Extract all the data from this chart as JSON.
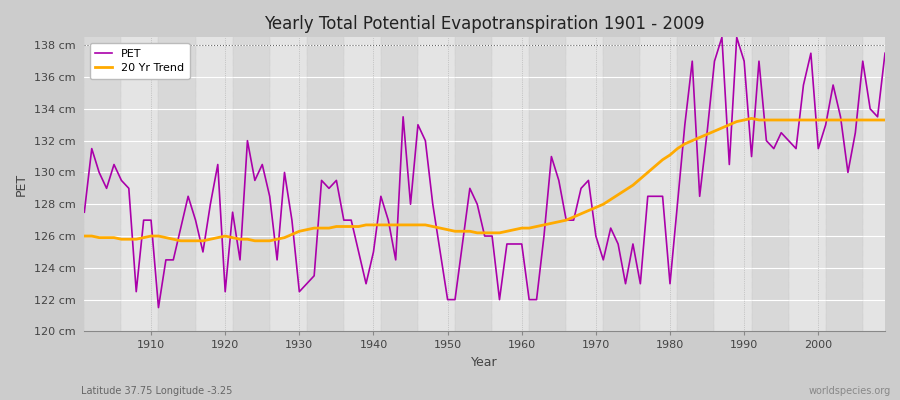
{
  "title": "Yearly Total Potential Evapotranspiration 1901 - 2009",
  "xlabel": "Year",
  "ylabel": "PET",
  "subtitle_left": "Latitude 37.75 Longitude -3.25",
  "subtitle_right": "worldspecies.org",
  "pet_color": "#aa00aa",
  "trend_color": "#ffaa00",
  "bg_color": "#d8d8d8",
  "plot_bg_light": "#e0e0e0",
  "plot_bg_dark": "#d0d0d0",
  "ylim": [
    120,
    138.5
  ],
  "ytick_labels": [
    "120 cm",
    "122 cm",
    "124 cm",
    "126 cm",
    "128 cm",
    "130 cm",
    "132 cm",
    "134 cm",
    "136 cm",
    "138 cm"
  ],
  "ytick_values": [
    120,
    122,
    124,
    126,
    128,
    130,
    132,
    134,
    136,
    138
  ],
  "xlim": [
    1901,
    2009
  ],
  "xtick_values": [
    1910,
    1920,
    1930,
    1940,
    1950,
    1960,
    1970,
    1980,
    1990,
    2000
  ],
  "years": [
    1901,
    1902,
    1903,
    1904,
    1905,
    1906,
    1907,
    1908,
    1909,
    1910,
    1911,
    1912,
    1913,
    1914,
    1915,
    1916,
    1917,
    1918,
    1919,
    1920,
    1921,
    1922,
    1923,
    1924,
    1925,
    1926,
    1927,
    1928,
    1929,
    1930,
    1931,
    1932,
    1933,
    1934,
    1935,
    1936,
    1937,
    1938,
    1939,
    1940,
    1941,
    1942,
    1943,
    1944,
    1945,
    1946,
    1947,
    1948,
    1949,
    1950,
    1951,
    1952,
    1953,
    1954,
    1955,
    1956,
    1957,
    1958,
    1959,
    1960,
    1961,
    1962,
    1963,
    1964,
    1965,
    1966,
    1967,
    1968,
    1969,
    1970,
    1971,
    1972,
    1973,
    1974,
    1975,
    1976,
    1977,
    1978,
    1979,
    1980,
    1981,
    1982,
    1983,
    1984,
    1985,
    1986,
    1987,
    1988,
    1989,
    1990,
    1991,
    1992,
    1993,
    1994,
    1995,
    1996,
    1997,
    1998,
    1999,
    2000,
    2001,
    2002,
    2003,
    2004,
    2005,
    2006,
    2007,
    2008,
    2009
  ],
  "pet_values": [
    127.5,
    131.5,
    130.0,
    129.0,
    130.5,
    129.5,
    129.0,
    122.5,
    127.0,
    127.0,
    121.5,
    124.5,
    124.5,
    126.5,
    128.5,
    127.0,
    125.0,
    128.0,
    130.5,
    122.5,
    127.5,
    124.5,
    132.0,
    129.5,
    130.5,
    128.5,
    124.5,
    130.0,
    127.0,
    122.5,
    123.0,
    123.5,
    129.5,
    129.0,
    129.5,
    127.0,
    127.0,
    125.0,
    123.0,
    125.0,
    128.5,
    127.0,
    124.5,
    133.5,
    128.0,
    133.0,
    132.0,
    128.0,
    125.0,
    122.0,
    122.0,
    125.5,
    129.0,
    128.0,
    126.0,
    126.0,
    122.0,
    125.5,
    125.5,
    125.5,
    122.0,
    122.0,
    126.0,
    131.0,
    129.5,
    127.0,
    127.0,
    129.0,
    129.5,
    126.0,
    124.5,
    126.5,
    125.5,
    123.0,
    125.5,
    123.0,
    128.5,
    128.5,
    128.5,
    123.0,
    128.0,
    133.0,
    137.0,
    128.5,
    132.5,
    137.0,
    138.5,
    130.5,
    138.5,
    137.0,
    131.0,
    137.0,
    132.0,
    131.5,
    132.5,
    132.0,
    131.5,
    135.5,
    137.5,
    131.5,
    133.0,
    135.5,
    133.5,
    130.0,
    132.5,
    137.0,
    134.0,
    133.5,
    137.5
  ],
  "trend_values": [
    126.0,
    126.0,
    125.9,
    125.9,
    125.9,
    125.8,
    125.8,
    125.8,
    125.9,
    126.0,
    126.0,
    125.9,
    125.8,
    125.7,
    125.7,
    125.7,
    125.7,
    125.8,
    125.9,
    126.0,
    125.9,
    125.8,
    125.8,
    125.7,
    125.7,
    125.7,
    125.8,
    125.9,
    126.1,
    126.3,
    126.4,
    126.5,
    126.5,
    126.5,
    126.6,
    126.6,
    126.6,
    126.6,
    126.7,
    126.7,
    126.7,
    126.7,
    126.7,
    126.7,
    126.7,
    126.7,
    126.7,
    126.6,
    126.5,
    126.4,
    126.3,
    126.3,
    126.3,
    126.2,
    126.2,
    126.2,
    126.2,
    126.3,
    126.4,
    126.5,
    126.5,
    126.6,
    126.7,
    126.8,
    126.9,
    127.0,
    127.2,
    127.4,
    127.6,
    127.8,
    128.0,
    128.3,
    128.6,
    128.9,
    129.2,
    129.6,
    130.0,
    130.4,
    130.8,
    131.1,
    131.5,
    131.8,
    132.0,
    132.2,
    132.4,
    132.6,
    132.8,
    133.0,
    133.2,
    133.3,
    133.4,
    133.3,
    133.3,
    133.3,
    133.3,
    133.3,
    133.3,
    133.3,
    133.3,
    133.3,
    133.3,
    133.3,
    133.3,
    133.3,
    133.3,
    133.3,
    133.3,
    133.3,
    133.3
  ]
}
